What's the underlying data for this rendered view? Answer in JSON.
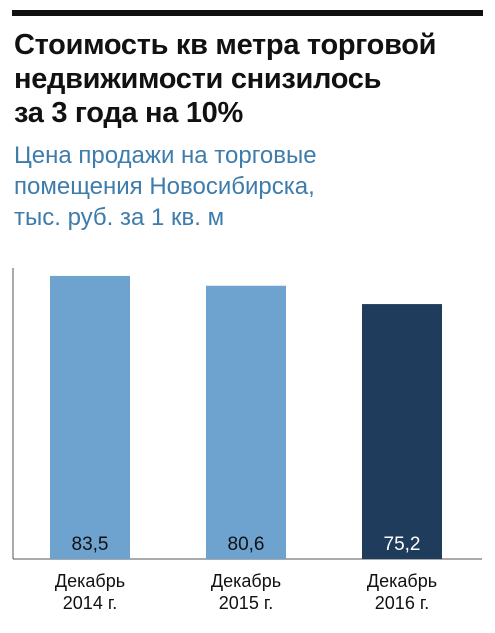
{
  "header": {
    "title_lines": [
      "Стоимость кв метра торговой",
      "недвижимости снизилось",
      "за 3 года на 10%"
    ],
    "subtitle_lines": [
      "Цена продажи на торговые",
      "помещения Новосибирска,",
      "тыс. руб. за 1 кв. м"
    ]
  },
  "colors": {
    "bar_light": "#6fa3cf",
    "bar_dark": "#1f3c5c",
    "subtitle": "#3e7cab",
    "label_on_light": "#111111",
    "label_on_dark": "#ffffff"
  },
  "chart_data": {
    "type": "bar",
    "categories": [
      "Декабрь 2014 г.",
      "Декабрь 2015 г.",
      "Декабрь 2016 г."
    ],
    "category_lines": [
      [
        "Декабрь",
        "2014 г."
      ],
      [
        "Декабрь",
        "2015 г."
      ],
      [
        "Декабрь",
        "2016 г."
      ]
    ],
    "values": [
      83.5,
      80.6,
      75.2
    ],
    "value_labels": [
      "83,5",
      "80,6",
      "75,2"
    ],
    "highlight_index": 2,
    "ylim": [
      0,
      100
    ],
    "grid": false
  }
}
